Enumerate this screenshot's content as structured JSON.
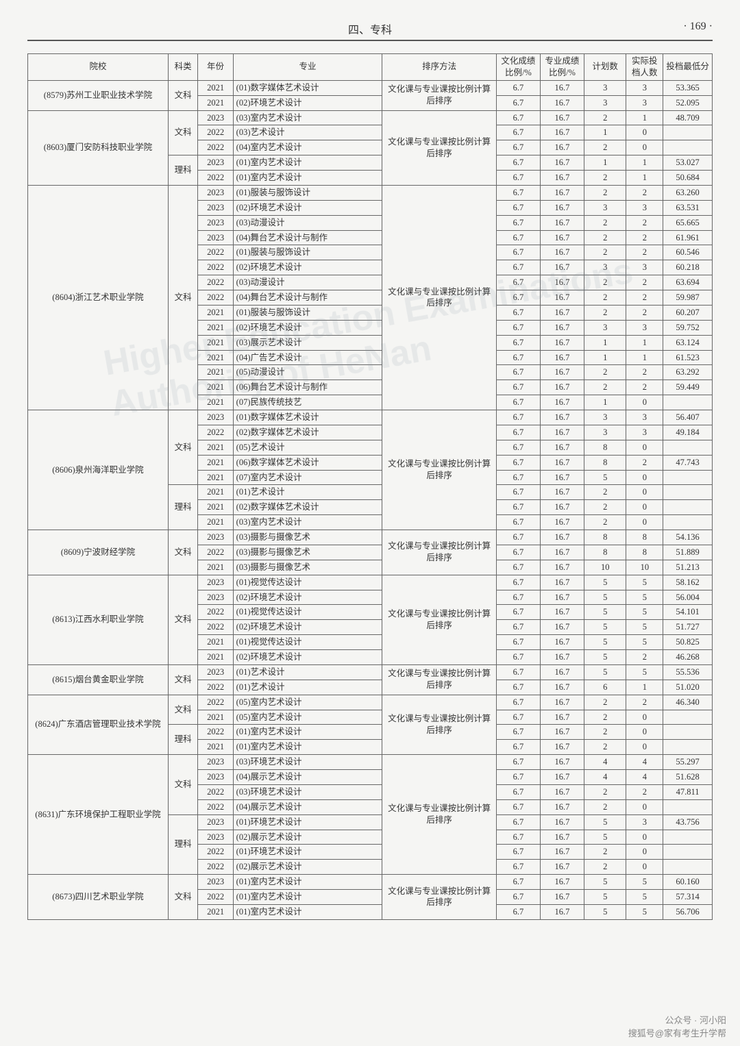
{
  "page": {
    "section_title": "四、专科",
    "page_number": "· 169 ·"
  },
  "table": {
    "columns": [
      "院校",
      "科类",
      "年份",
      "专业",
      "排序方法",
      "文化成绩比例/%",
      "专业成绩比例/%",
      "计划数",
      "实际投档人数",
      "投档最低分"
    ],
    "sort_method_default": "文化课与专业课按比例计算后排序",
    "groups": [
      {
        "school": "(8579)苏州工业职业技术学院",
        "tracks": [
          {
            "track": "文科",
            "sort_method": "文化课与专业课按比例计算后排序",
            "rows": [
              {
                "year": "2021",
                "major": "(01)数字媒体艺术设计",
                "p1": "6.7",
                "p2": "16.7",
                "plan": "3",
                "actual": "3",
                "score": "53.365"
              },
              {
                "year": "2021",
                "major": "(02)环境艺术设计",
                "p1": "6.7",
                "p2": "16.7",
                "plan": "3",
                "actual": "3",
                "score": "52.095"
              }
            ]
          }
        ]
      },
      {
        "school": "(8603)厦门安防科技职业学院",
        "tracks": [
          {
            "track": "文科",
            "rows": [
              {
                "year": "2023",
                "major": "(03)室内艺术设计",
                "p1": "6.7",
                "p2": "16.7",
                "plan": "2",
                "actual": "1",
                "score": "48.709"
              },
              {
                "year": "2022",
                "major": "(03)艺术设计",
                "p1": "6.7",
                "p2": "16.7",
                "plan": "1",
                "actual": "0",
                "score": ""
              },
              {
                "year": "2022",
                "major": "(04)室内艺术设计",
                "p1": "6.7",
                "p2": "16.7",
                "plan": "2",
                "actual": "0",
                "score": ""
              }
            ],
            "sort_method": "文化课与专业课按比例计算后排序"
          },
          {
            "track": "理科",
            "rows": [
              {
                "year": "2023",
                "major": "(01)室内艺术设计",
                "p1": "6.7",
                "p2": "16.7",
                "plan": "1",
                "actual": "1",
                "score": "53.027"
              },
              {
                "year": "2022",
                "major": "(01)室内艺术设计",
                "p1": "6.7",
                "p2": "16.7",
                "plan": "2",
                "actual": "1",
                "score": "50.684"
              }
            ]
          }
        ]
      },
      {
        "school": "(8604)浙江艺术职业学院",
        "tracks": [
          {
            "track": "文科",
            "sort_method": "文化课与专业课按比例计算后排序",
            "rows": [
              {
                "year": "2023",
                "major": "(01)服装与服饰设计",
                "p1": "6.7",
                "p2": "16.7",
                "plan": "2",
                "actual": "2",
                "score": "63.260"
              },
              {
                "year": "2023",
                "major": "(02)环境艺术设计",
                "p1": "6.7",
                "p2": "16.7",
                "plan": "3",
                "actual": "3",
                "score": "63.531"
              },
              {
                "year": "2023",
                "major": "(03)动漫设计",
                "p1": "6.7",
                "p2": "16.7",
                "plan": "2",
                "actual": "2",
                "score": "65.665"
              },
              {
                "year": "2023",
                "major": "(04)舞台艺术设计与制作",
                "p1": "6.7",
                "p2": "16.7",
                "plan": "2",
                "actual": "2",
                "score": "61.961"
              },
              {
                "year": "2022",
                "major": "(01)服装与服饰设计",
                "p1": "6.7",
                "p2": "16.7",
                "plan": "2",
                "actual": "2",
                "score": "60.546"
              },
              {
                "year": "2022",
                "major": "(02)环境艺术设计",
                "p1": "6.7",
                "p2": "16.7",
                "plan": "3",
                "actual": "3",
                "score": "60.218"
              },
              {
                "year": "2022",
                "major": "(03)动漫设计",
                "p1": "6.7",
                "p2": "16.7",
                "plan": "2",
                "actual": "2",
                "score": "63.694"
              },
              {
                "year": "2022",
                "major": "(04)舞台艺术设计与制作",
                "p1": "6.7",
                "p2": "16.7",
                "plan": "2",
                "actual": "2",
                "score": "59.987"
              },
              {
                "year": "2021",
                "major": "(01)服装与服饰设计",
                "p1": "6.7",
                "p2": "16.7",
                "plan": "2",
                "actual": "2",
                "score": "60.207"
              },
              {
                "year": "2021",
                "major": "(02)环境艺术设计",
                "p1": "6.7",
                "p2": "16.7",
                "plan": "3",
                "actual": "3",
                "score": "59.752"
              },
              {
                "year": "2021",
                "major": "(03)展示艺术设计",
                "p1": "6.7",
                "p2": "16.7",
                "plan": "1",
                "actual": "1",
                "score": "63.124"
              },
              {
                "year": "2021",
                "major": "(04)广告艺术设计",
                "p1": "6.7",
                "p2": "16.7",
                "plan": "1",
                "actual": "1",
                "score": "61.523"
              },
              {
                "year": "2021",
                "major": "(05)动漫设计",
                "p1": "6.7",
                "p2": "16.7",
                "plan": "2",
                "actual": "2",
                "score": "63.292"
              },
              {
                "year": "2021",
                "major": "(06)舞台艺术设计与制作",
                "p1": "6.7",
                "p2": "16.7",
                "plan": "2",
                "actual": "2",
                "score": "59.449"
              },
              {
                "year": "2021",
                "major": "(07)民族传统技艺",
                "p1": "6.7",
                "p2": "16.7",
                "plan": "1",
                "actual": "0",
                "score": ""
              }
            ]
          }
        ]
      },
      {
        "school": "(8606)泉州海洋职业学院",
        "tracks": [
          {
            "track": "文科",
            "sort_method": "文化课与专业课按比例计算后排序",
            "rows": [
              {
                "year": "2023",
                "major": "(01)数字媒体艺术设计",
                "p1": "6.7",
                "p2": "16.7",
                "plan": "3",
                "actual": "3",
                "score": "56.407"
              },
              {
                "year": "2022",
                "major": "(02)数字媒体艺术设计",
                "p1": "6.7",
                "p2": "16.7",
                "plan": "3",
                "actual": "3",
                "score": "49.184"
              },
              {
                "year": "2021",
                "major": "(05)艺术设计",
                "p1": "6.7",
                "p2": "16.7",
                "plan": "8",
                "actual": "0",
                "score": ""
              },
              {
                "year": "2021",
                "major": "(06)数字媒体艺术设计",
                "p1": "6.7",
                "p2": "16.7",
                "plan": "8",
                "actual": "2",
                "score": "47.743"
              },
              {
                "year": "2021",
                "major": "(07)室内艺术设计",
                "p1": "6.7",
                "p2": "16.7",
                "plan": "5",
                "actual": "0",
                "score": ""
              }
            ]
          },
          {
            "track": "理科",
            "rows": [
              {
                "year": "2021",
                "major": "(01)艺术设计",
                "p1": "6.7",
                "p2": "16.7",
                "plan": "2",
                "actual": "0",
                "score": ""
              },
              {
                "year": "2021",
                "major": "(02)数字媒体艺术设计",
                "p1": "6.7",
                "p2": "16.7",
                "plan": "2",
                "actual": "0",
                "score": ""
              },
              {
                "year": "2021",
                "major": "(03)室内艺术设计",
                "p1": "6.7",
                "p2": "16.7",
                "plan": "2",
                "actual": "0",
                "score": ""
              }
            ]
          }
        ]
      },
      {
        "school": "(8609)宁波财经学院",
        "tracks": [
          {
            "track": "文科",
            "sort_method": "文化课与专业课按比例计算后排序",
            "rows": [
              {
                "year": "2023",
                "major": "(03)摄影与摄像艺术",
                "p1": "6.7",
                "p2": "16.7",
                "plan": "8",
                "actual": "8",
                "score": "54.136"
              },
              {
                "year": "2022",
                "major": "(03)摄影与摄像艺术",
                "p1": "6.7",
                "p2": "16.7",
                "plan": "8",
                "actual": "8",
                "score": "51.889"
              },
              {
                "year": "2021",
                "major": "(03)摄影与摄像艺术",
                "p1": "6.7",
                "p2": "16.7",
                "plan": "10",
                "actual": "10",
                "score": "51.213"
              }
            ]
          }
        ]
      },
      {
        "school": "(8613)江西水利职业学院",
        "tracks": [
          {
            "track": "文科",
            "sort_method": "文化课与专业课按比例计算后排序",
            "rows": [
              {
                "year": "2023",
                "major": "(01)视觉传达设计",
                "p1": "6.7",
                "p2": "16.7",
                "plan": "5",
                "actual": "5",
                "score": "58.162"
              },
              {
                "year": "2023",
                "major": "(02)环境艺术设计",
                "p1": "6.7",
                "p2": "16.7",
                "plan": "5",
                "actual": "5",
                "score": "56.004"
              },
              {
                "year": "2022",
                "major": "(01)视觉传达设计",
                "p1": "6.7",
                "p2": "16.7",
                "plan": "5",
                "actual": "5",
                "score": "54.101"
              },
              {
                "year": "2022",
                "major": "(02)环境艺术设计",
                "p1": "6.7",
                "p2": "16.7",
                "plan": "5",
                "actual": "5",
                "score": "51.727"
              },
              {
                "year": "2021",
                "major": "(01)视觉传达设计",
                "p1": "6.7",
                "p2": "16.7",
                "plan": "5",
                "actual": "5",
                "score": "50.825"
              },
              {
                "year": "2021",
                "major": "(02)环境艺术设计",
                "p1": "6.7",
                "p2": "16.7",
                "plan": "5",
                "actual": "2",
                "score": "46.268"
              }
            ]
          }
        ]
      },
      {
        "school": "(8615)烟台黄金职业学院",
        "tracks": [
          {
            "track": "文科",
            "sort_method": "文化课与专业课按比例计算后排序",
            "rows": [
              {
                "year": "2023",
                "major": "(01)艺术设计",
                "p1": "6.7",
                "p2": "16.7",
                "plan": "5",
                "actual": "5",
                "score": "55.536"
              },
              {
                "year": "2022",
                "major": "(01)艺术设计",
                "p1": "6.7",
                "p2": "16.7",
                "plan": "6",
                "actual": "1",
                "score": "51.020"
              }
            ]
          }
        ]
      },
      {
        "school": "(8624)广东酒店管理职业技术学院",
        "tracks": [
          {
            "track": "文科",
            "sort_method": "文化课与专业课按比例计算后排序",
            "rows": [
              {
                "year": "2022",
                "major": "(05)室内艺术设计",
                "p1": "6.7",
                "p2": "16.7",
                "plan": "2",
                "actual": "2",
                "score": "46.340"
              },
              {
                "year": "2021",
                "major": "(05)室内艺术设计",
                "p1": "6.7",
                "p2": "16.7",
                "plan": "2",
                "actual": "0",
                "score": ""
              }
            ]
          },
          {
            "track": "理科",
            "rows": [
              {
                "year": "2022",
                "major": "(01)室内艺术设计",
                "p1": "6.7",
                "p2": "16.7",
                "plan": "2",
                "actual": "0",
                "score": ""
              },
              {
                "year": "2021",
                "major": "(01)室内艺术设计",
                "p1": "6.7",
                "p2": "16.7",
                "plan": "2",
                "actual": "0",
                "score": ""
              }
            ]
          }
        ]
      },
      {
        "school": "(8631)广东环境保护工程职业学院",
        "tracks": [
          {
            "track": "文科",
            "sort_method": "文化课与专业课按比例计算后排序",
            "rows": [
              {
                "year": "2023",
                "major": "(03)环境艺术设计",
                "p1": "6.7",
                "p2": "16.7",
                "plan": "4",
                "actual": "4",
                "score": "55.297"
              },
              {
                "year": "2023",
                "major": "(04)展示艺术设计",
                "p1": "6.7",
                "p2": "16.7",
                "plan": "4",
                "actual": "4",
                "score": "51.628"
              },
              {
                "year": "2022",
                "major": "(03)环境艺术设计",
                "p1": "6.7",
                "p2": "16.7",
                "plan": "2",
                "actual": "2",
                "score": "47.811"
              },
              {
                "year": "2022",
                "major": "(04)展示艺术设计",
                "p1": "6.7",
                "p2": "16.7",
                "plan": "2",
                "actual": "0",
                "score": ""
              }
            ]
          },
          {
            "track": "理科",
            "rows": [
              {
                "year": "2023",
                "major": "(01)环境艺术设计",
                "p1": "6.7",
                "p2": "16.7",
                "plan": "5",
                "actual": "3",
                "score": "43.756"
              },
              {
                "year": "2023",
                "major": "(02)展示艺术设计",
                "p1": "6.7",
                "p2": "16.7",
                "plan": "5",
                "actual": "0",
                "score": ""
              },
              {
                "year": "2022",
                "major": "(01)环境艺术设计",
                "p1": "6.7",
                "p2": "16.7",
                "plan": "2",
                "actual": "0",
                "score": ""
              },
              {
                "year": "2022",
                "major": "(02)展示艺术设计",
                "p1": "6.7",
                "p2": "16.7",
                "plan": "2",
                "actual": "0",
                "score": ""
              }
            ]
          }
        ]
      },
      {
        "school": "(8673)四川艺术职业学院",
        "tracks": [
          {
            "track": "文科",
            "sort_method": "文化课与专业课按比例计算后排序",
            "rows": [
              {
                "year": "2023",
                "major": "(01)室内艺术设计",
                "p1": "6.7",
                "p2": "16.7",
                "plan": "5",
                "actual": "5",
                "score": "60.160"
              },
              {
                "year": "2022",
                "major": "(01)室内艺术设计",
                "p1": "6.7",
                "p2": "16.7",
                "plan": "5",
                "actual": "5",
                "score": "57.314"
              },
              {
                "year": "2021",
                "major": "(01)室内艺术设计",
                "p1": "6.7",
                "p2": "16.7",
                "plan": "5",
                "actual": "5",
                "score": "56.706"
              }
            ]
          }
        ]
      }
    ]
  },
  "footer": {
    "wechat_label": "公众号 · 河小阳",
    "sohu_label": "搜狐号@家有考生升学帮"
  }
}
